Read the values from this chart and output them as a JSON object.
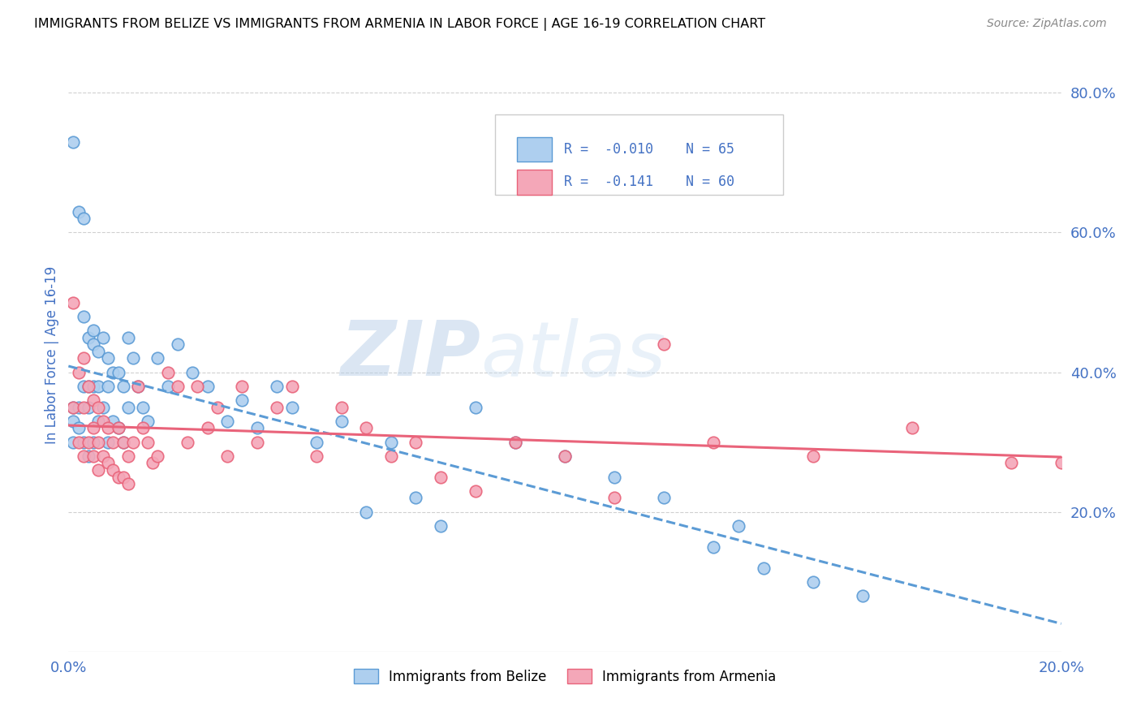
{
  "title": "IMMIGRANTS FROM BELIZE VS IMMIGRANTS FROM ARMENIA IN LABOR FORCE | AGE 16-19 CORRELATION CHART",
  "source": "Source: ZipAtlas.com",
  "ylabel": "In Labor Force | Age 16-19",
  "xlim": [
    0.0,
    0.2
  ],
  "ylim": [
    0.0,
    0.85
  ],
  "ytick_vals": [
    0.2,
    0.4,
    0.6,
    0.8
  ],
  "ytick_labels": [
    "20.0%",
    "40.0%",
    "60.0%",
    "80.0%"
  ],
  "xtick_vals": [
    0.0,
    0.2
  ],
  "xtick_labels": [
    "0.0%",
    "20.0%"
  ],
  "color_belize_fill": "#aecfef",
  "color_belize_edge": "#5b9bd5",
  "color_armenia_fill": "#f4a7b8",
  "color_armenia_edge": "#e9637a",
  "color_belize_line": "#5b9bd5",
  "color_armenia_line": "#e9637a",
  "color_text_blue": "#4472c4",
  "grid_color": "#d0d0d0",
  "watermark_color": "#c8d8ee",
  "belize_x": [
    0.001,
    0.001,
    0.001,
    0.001,
    0.002,
    0.002,
    0.002,
    0.003,
    0.003,
    0.003,
    0.003,
    0.004,
    0.004,
    0.004,
    0.004,
    0.005,
    0.005,
    0.005,
    0.005,
    0.006,
    0.006,
    0.006,
    0.007,
    0.007,
    0.008,
    0.008,
    0.008,
    0.009,
    0.009,
    0.01,
    0.01,
    0.011,
    0.011,
    0.012,
    0.012,
    0.013,
    0.014,
    0.015,
    0.016,
    0.018,
    0.02,
    0.022,
    0.025,
    0.028,
    0.032,
    0.035,
    0.038,
    0.042,
    0.045,
    0.05,
    0.055,
    0.06,
    0.065,
    0.07,
    0.075,
    0.082,
    0.09,
    0.1,
    0.11,
    0.12,
    0.13,
    0.135,
    0.14,
    0.15,
    0.16
  ],
  "belize_y": [
    0.73,
    0.35,
    0.33,
    0.3,
    0.63,
    0.35,
    0.32,
    0.62,
    0.48,
    0.38,
    0.3,
    0.45,
    0.38,
    0.35,
    0.28,
    0.46,
    0.44,
    0.38,
    0.3,
    0.43,
    0.38,
    0.33,
    0.45,
    0.35,
    0.42,
    0.38,
    0.3,
    0.4,
    0.33,
    0.4,
    0.32,
    0.38,
    0.3,
    0.45,
    0.35,
    0.42,
    0.38,
    0.35,
    0.33,
    0.42,
    0.38,
    0.44,
    0.4,
    0.38,
    0.33,
    0.36,
    0.32,
    0.38,
    0.35,
    0.3,
    0.33,
    0.2,
    0.3,
    0.22,
    0.18,
    0.35,
    0.3,
    0.28,
    0.25,
    0.22,
    0.15,
    0.18,
    0.12,
    0.1,
    0.08
  ],
  "armenia_x": [
    0.001,
    0.001,
    0.002,
    0.002,
    0.003,
    0.003,
    0.003,
    0.004,
    0.004,
    0.005,
    0.005,
    0.005,
    0.006,
    0.006,
    0.006,
    0.007,
    0.007,
    0.008,
    0.008,
    0.009,
    0.009,
    0.01,
    0.01,
    0.011,
    0.011,
    0.012,
    0.012,
    0.013,
    0.014,
    0.015,
    0.016,
    0.017,
    0.018,
    0.02,
    0.022,
    0.024,
    0.026,
    0.028,
    0.03,
    0.032,
    0.035,
    0.038,
    0.042,
    0.045,
    0.05,
    0.055,
    0.06,
    0.065,
    0.07,
    0.075,
    0.082,
    0.09,
    0.1,
    0.11,
    0.12,
    0.13,
    0.15,
    0.17,
    0.19,
    0.2
  ],
  "armenia_y": [
    0.5,
    0.35,
    0.4,
    0.3,
    0.42,
    0.35,
    0.28,
    0.38,
    0.3,
    0.36,
    0.32,
    0.28,
    0.35,
    0.3,
    0.26,
    0.33,
    0.28,
    0.32,
    0.27,
    0.3,
    0.26,
    0.32,
    0.25,
    0.3,
    0.25,
    0.28,
    0.24,
    0.3,
    0.38,
    0.32,
    0.3,
    0.27,
    0.28,
    0.4,
    0.38,
    0.3,
    0.38,
    0.32,
    0.35,
    0.28,
    0.38,
    0.3,
    0.35,
    0.38,
    0.28,
    0.35,
    0.32,
    0.28,
    0.3,
    0.25,
    0.23,
    0.3,
    0.28,
    0.22,
    0.44,
    0.3,
    0.28,
    0.32,
    0.27,
    0.27
  ]
}
